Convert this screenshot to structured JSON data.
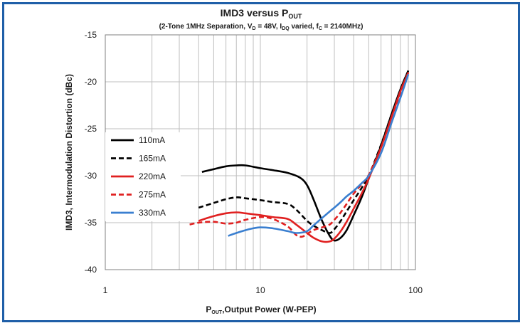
{
  "chart_data": {
    "type": "line",
    "title_main": "IMD3 versus P",
    "title_main_sub": "OUT",
    "subtitle_parts": {
      "p1": "(2-Tone 1MHz Separation, V",
      "s1": "D",
      "p2": " = 48V, I",
      "s2": "DQ",
      "p3": " varied, f",
      "s3": "C",
      "p4": " = 2140MHz)"
    },
    "xlabel_parts": {
      "p1": "P",
      "s1": "OUT",
      "p2": ",Output Power (W-PEP)"
    },
    "ylabel": "IMD3, Intermodulation Distortion (dBc)",
    "x_scale": "log",
    "xlim": [
      1,
      100
    ],
    "ylim": [
      -40,
      -15
    ],
    "x_ticks": [
      1,
      10,
      100
    ],
    "x_tick_labels": [
      "1",
      "10",
      "100"
    ],
    "y_ticks": [
      -15,
      -20,
      -25,
      -30,
      -35,
      -40
    ],
    "y_tick_labels": [
      "-15",
      "-20",
      "-25",
      "-30",
      "-35",
      "-40"
    ],
    "grid": true,
    "legend_position": "left",
    "series": [
      {
        "name": "110mA",
        "color": "#000000",
        "dashed": false,
        "x": [
          4.2,
          5,
          6,
          7,
          8,
          10,
          12,
          15,
          18,
          20,
          22,
          25,
          28,
          30,
          33,
          36,
          40,
          45,
          50,
          60,
          70,
          80,
          90
        ],
        "y": [
          -29.6,
          -29.3,
          -29.0,
          -28.9,
          -28.9,
          -29.2,
          -29.4,
          -29.7,
          -30.2,
          -31.0,
          -32.5,
          -34.8,
          -36.4,
          -36.9,
          -36.6,
          -35.8,
          -34.2,
          -32.3,
          -30.3,
          -26.8,
          -23.5,
          -20.8,
          -18.8
        ]
      },
      {
        "name": "165mA",
        "color": "#000000",
        "dashed": true,
        "x": [
          4,
          5,
          6,
          7,
          8,
          10,
          12,
          15,
          17,
          20,
          22,
          25,
          28,
          30,
          33,
          36,
          40,
          45,
          50,
          60,
          70,
          80,
          90
        ],
        "y": [
          -33.4,
          -32.9,
          -32.5,
          -32.3,
          -32.4,
          -32.6,
          -32.8,
          -33.0,
          -33.6,
          -34.8,
          -35.3,
          -35.8,
          -36.1,
          -35.7,
          -34.8,
          -33.8,
          -32.6,
          -31.3,
          -30.0,
          -26.7,
          -23.5,
          -20.8,
          -18.8
        ]
      },
      {
        "name": "220mA",
        "color": "#e02020",
        "dashed": false,
        "x": [
          4,
          5,
          6,
          7,
          8,
          10,
          12,
          15,
          17,
          20,
          22,
          25,
          28,
          30,
          33,
          36,
          40,
          45,
          50,
          60,
          70,
          80,
          90
        ],
        "y": [
          -34.8,
          -34.3,
          -34.0,
          -33.9,
          -34.0,
          -34.2,
          -34.4,
          -34.6,
          -35.2,
          -36.1,
          -36.6,
          -37.0,
          -37.0,
          -36.7,
          -35.9,
          -34.9,
          -33.5,
          -31.9,
          -30.3,
          -27.0,
          -23.8,
          -21.0,
          -19.0
        ]
      },
      {
        "name": "275mA",
        "color": "#e02020",
        "dashed": true,
        "x": [
          3.5,
          4,
          5,
          6,
          7,
          8,
          10,
          12,
          15,
          17,
          18.5,
          20,
          22,
          25,
          28,
          30,
          33,
          36,
          40,
          45,
          50,
          60,
          70,
          80,
          90
        ],
        "y": [
          -35.2,
          -35.0,
          -34.9,
          -35.1,
          -35.0,
          -34.7,
          -34.4,
          -34.6,
          -35.4,
          -36.3,
          -36.5,
          -36.2,
          -35.8,
          -35.5,
          -35.2,
          -34.7,
          -33.9,
          -33.0,
          -31.9,
          -30.9,
          -29.9,
          -27.0,
          -23.8,
          -21.2,
          -19.0
        ]
      },
      {
        "name": "330mA",
        "color": "#3a7fd0",
        "dashed": false,
        "x": [
          6.2,
          7,
          8,
          9,
          10,
          12,
          15,
          17,
          20,
          22,
          25,
          28,
          30,
          33,
          36,
          40,
          45,
          50,
          60,
          70,
          80,
          90
        ],
        "y": [
          -36.4,
          -36.1,
          -35.8,
          -35.6,
          -35.5,
          -35.6,
          -35.9,
          -36.1,
          -35.9,
          -35.3,
          -34.5,
          -33.8,
          -33.4,
          -32.8,
          -32.2,
          -31.6,
          -30.8,
          -30.0,
          -27.6,
          -24.4,
          -21.7,
          -19.2
        ]
      }
    ]
  }
}
